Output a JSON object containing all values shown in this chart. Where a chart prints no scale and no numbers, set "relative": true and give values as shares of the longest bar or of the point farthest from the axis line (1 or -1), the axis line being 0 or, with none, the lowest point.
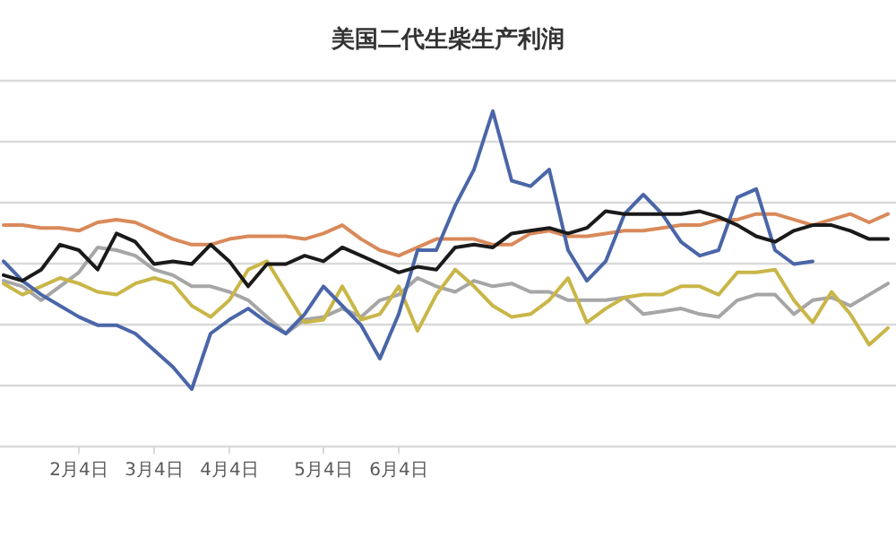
{
  "chart_data": {
    "type": "line",
    "title": "美国二代生柴生产利润",
    "relative": true,
    "grid": "y",
    "categories": [
      null,
      null,
      null,
      null,
      "2月4日",
      null,
      null,
      null,
      "3月4日",
      null,
      null,
      null,
      "4月4日",
      null,
      null,
      null,
      null,
      "5月4日",
      null,
      null,
      null,
      "6月4日",
      null,
      null,
      null,
      null,
      null,
      null,
      null,
      null,
      null,
      null,
      null,
      null,
      null,
      null,
      null,
      null,
      null,
      null,
      null,
      null,
      null,
      null,
      null,
      null,
      null,
      null
    ],
    "series": [
      {
        "color": "#d9895a",
        "values": [
          0.59,
          0.59,
          0.58,
          0.58,
          0.57,
          0.6,
          0.61,
          0.6,
          0.57,
          0.54,
          0.52,
          0.52,
          0.54,
          0.55,
          0.55,
          0.55,
          0.54,
          0.56,
          0.59,
          0.54,
          0.5,
          0.48,
          0.51,
          0.54,
          0.54,
          0.54,
          0.52,
          0.52,
          0.56,
          0.57,
          0.55,
          0.55,
          0.56,
          0.57,
          0.57,
          0.58,
          0.59,
          0.59,
          0.61,
          0.61,
          0.63,
          0.63,
          0.61,
          0.59,
          0.61,
          0.63,
          0.6,
          0.63
        ]
      },
      {
        "color": "#a6a6a6",
        "values": [
          0.39,
          0.37,
          0.32,
          0.37,
          0.42,
          0.51,
          0.5,
          0.48,
          0.43,
          0.41,
          0.37,
          0.37,
          0.35,
          0.32,
          0.26,
          0.2,
          0.25,
          0.26,
          0.29,
          0.26,
          0.32,
          0.34,
          0.4,
          0.37,
          0.35,
          0.39,
          0.37,
          0.38,
          0.35,
          0.35,
          0.32,
          0.32,
          0.32,
          0.33,
          0.27,
          0.28,
          0.29,
          0.27,
          0.26,
          0.32,
          0.34,
          0.34,
          0.27,
          0.32,
          0.33,
          0.3,
          0.34,
          0.38
        ]
      },
      {
        "color": "#c9b648",
        "values": [
          0.38,
          0.34,
          0.37,
          0.4,
          0.38,
          0.35,
          0.34,
          0.38,
          0.4,
          0.38,
          0.3,
          0.26,
          0.32,
          0.43,
          0.46,
          0.35,
          0.24,
          0.25,
          0.37,
          0.25,
          0.27,
          0.37,
          0.21,
          0.34,
          0.43,
          0.37,
          0.3,
          0.26,
          0.27,
          0.32,
          0.4,
          0.24,
          0.29,
          0.33,
          0.34,
          0.34,
          0.37,
          0.37,
          0.34,
          0.42,
          0.42,
          0.43,
          0.32,
          0.24,
          0.35,
          0.27,
          0.16,
          0.22
        ]
      },
      {
        "color": "#4a66a8",
        "values": [
          0.46,
          0.39,
          0.34,
          0.3,
          0.26,
          0.23,
          0.23,
          0.2,
          0.14,
          0.08,
          0,
          0.2,
          0.25,
          0.29,
          0.24,
          0.2,
          0.27,
          0.37,
          0.3,
          0.23,
          0.11,
          0.27,
          0.5,
          0.5,
          0.66,
          0.79,
          1,
          0.75,
          0.73,
          0.79,
          0.5,
          0.39,
          0.46,
          0.63,
          0.7,
          0.63,
          0.53,
          0.48,
          0.5,
          0.69,
          0.72,
          0.5,
          0.45,
          0.46,
          null,
          null,
          null,
          null
        ]
      },
      {
        "color": "#1a1a1a",
        "values": [
          0.41,
          0.39,
          0.43,
          0.52,
          0.5,
          0.43,
          0.56,
          0.53,
          0.45,
          0.46,
          0.45,
          0.52,
          0.46,
          0.37,
          0.45,
          0.45,
          0.48,
          0.46,
          0.51,
          0.48,
          0.45,
          0.42,
          0.44,
          0.43,
          0.51,
          0.52,
          0.51,
          0.56,
          0.57,
          0.58,
          0.56,
          0.58,
          0.64,
          0.63,
          0.63,
          0.63,
          0.63,
          0.64,
          0.62,
          0.59,
          0.55,
          0.53,
          0.57,
          0.59,
          0.59,
          0.57,
          0.54,
          0.54
        ]
      }
    ]
  }
}
